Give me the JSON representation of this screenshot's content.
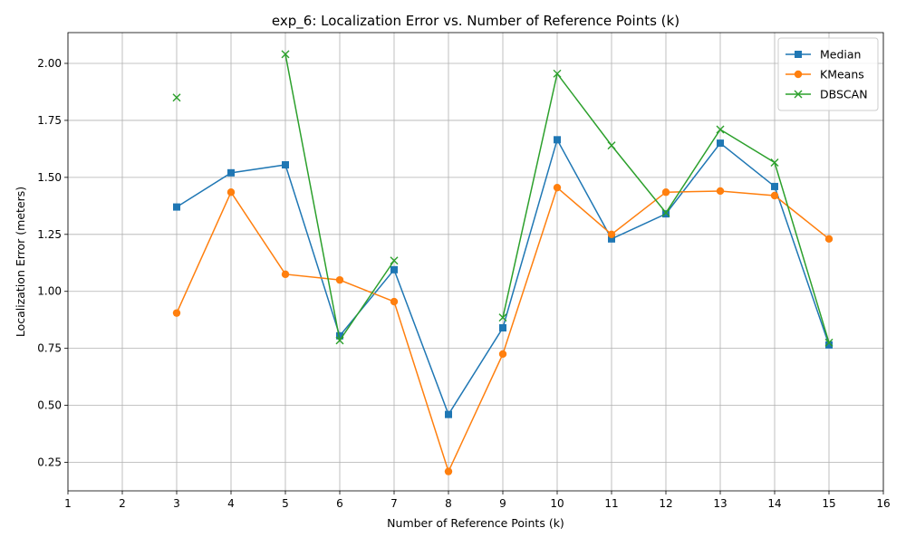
{
  "chart_data": {
    "type": "line",
    "title": "exp_6: Localization Error vs. Number of Reference Points (k)",
    "xlabel": "Number of Reference Points (k)",
    "ylabel": "Localization Error (meters)",
    "xlim": [
      1,
      16
    ],
    "ylim": [
      0.125,
      2.135
    ],
    "x_ticks": [
      1,
      2,
      3,
      4,
      5,
      6,
      7,
      8,
      9,
      10,
      11,
      12,
      13,
      14,
      15,
      16
    ],
    "y_ticks": [
      0.25,
      0.5,
      0.75,
      1.0,
      1.25,
      1.5,
      1.75,
      2.0
    ],
    "y_tick_labels": [
      "0.25",
      "0.50",
      "0.75",
      "1.00",
      "1.25",
      "1.50",
      "1.75",
      "2.00"
    ],
    "grid": true,
    "legend_position": "top-right",
    "x": [
      3,
      4,
      5,
      6,
      7,
      8,
      9,
      10,
      11,
      12,
      13,
      14,
      15
    ],
    "series": [
      {
        "name": "Median",
        "color": "#1f77b4",
        "marker": "square",
        "values": [
          1.37,
          1.52,
          1.555,
          0.805,
          1.095,
          0.46,
          0.84,
          1.665,
          1.23,
          1.34,
          1.65,
          1.46,
          0.765
        ]
      },
      {
        "name": "KMeans",
        "color": "#ff7f0e",
        "marker": "circle",
        "values": [
          0.905,
          1.435,
          1.075,
          1.05,
          0.955,
          0.21,
          0.725,
          1.455,
          1.25,
          1.435,
          1.44,
          1.42,
          1.23
        ]
      },
      {
        "name": "DBSCAN",
        "color": "#2ca02c",
        "marker": "x",
        "values": [
          1.85,
          null,
          2.04,
          0.785,
          1.135,
          null,
          0.885,
          1.955,
          1.64,
          1.345,
          1.71,
          1.565,
          0.775
        ]
      }
    ]
  }
}
